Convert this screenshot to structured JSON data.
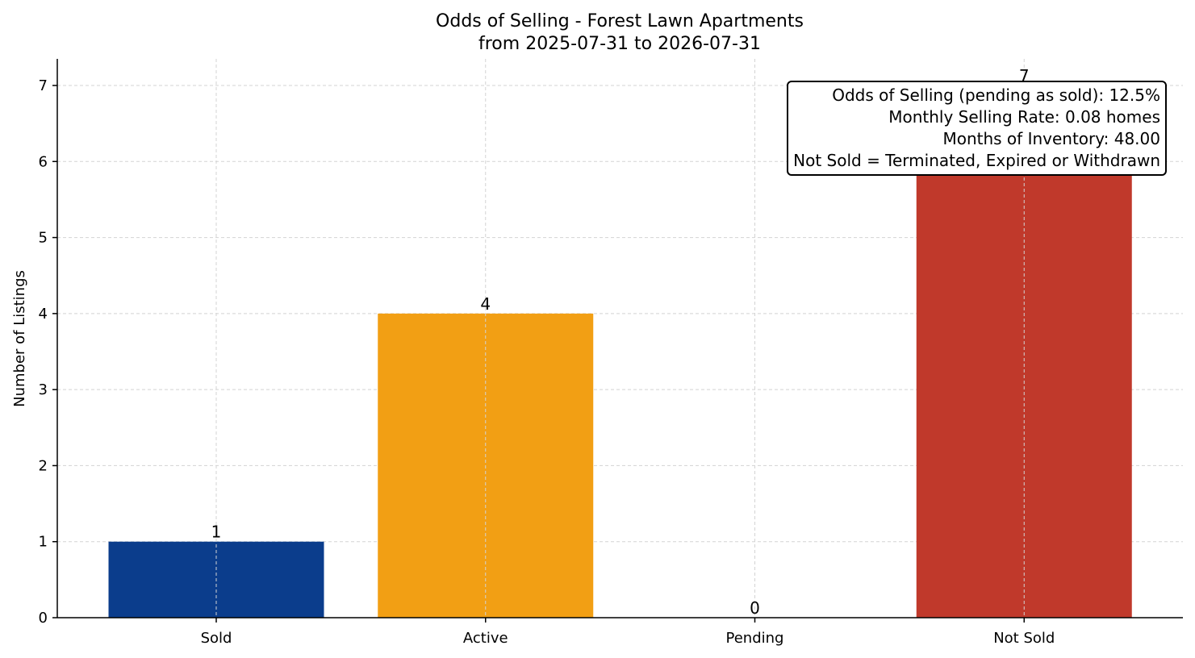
{
  "chart_data": {
    "type": "bar",
    "title": "Odds of Selling - Forest Lawn Apartments",
    "subtitle": "from 2025-07-31 to 2026-07-31",
    "xlabel": "",
    "ylabel": "Number of Listings",
    "categories": [
      "Sold",
      "Active",
      "Pending",
      "Not Sold"
    ],
    "values": [
      1,
      4,
      0,
      7
    ],
    "colors": [
      "#0b3d8c",
      "#f29f14",
      "#27ae60",
      "#c0392b"
    ],
    "ylim": [
      0,
      7.35
    ],
    "yticks": [
      0,
      1,
      2,
      3,
      4,
      5,
      6,
      7
    ],
    "grid": true,
    "annotation_box": {
      "position": "top-right",
      "lines": [
        "Odds of Selling (pending as sold): 12.5%",
        "Monthly Selling Rate: 0.08 homes",
        "Months of Inventory: 48.00",
        "Not Sold = Terminated, Expired or Withdrawn"
      ]
    }
  }
}
